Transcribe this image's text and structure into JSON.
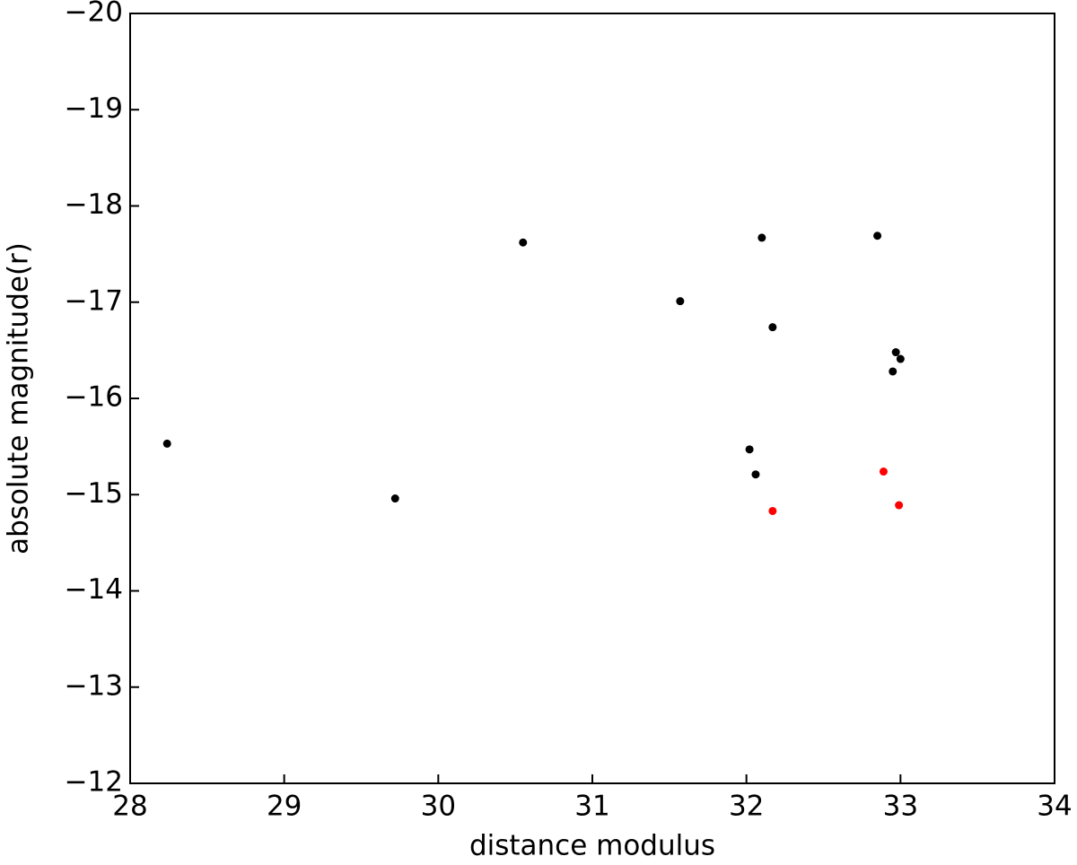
{
  "chart_data": {
    "type": "scatter",
    "xlabel": "distance modulus",
    "ylabel": "absolute magnitude(r)",
    "xlim": [
      28,
      34
    ],
    "ylim": [
      -12,
      -20
    ],
    "xticks": [
      28,
      29,
      30,
      31,
      32,
      33,
      34
    ],
    "yticks": [
      {
        "value": -20,
        "label": "−20"
      },
      {
        "value": -19,
        "label": "−19"
      },
      {
        "value": -18,
        "label": "−18"
      },
      {
        "value": -17,
        "label": "−17"
      },
      {
        "value": -16,
        "label": "−16"
      },
      {
        "value": -15,
        "label": "−15"
      },
      {
        "value": -14,
        "label": "−14"
      },
      {
        "value": -13,
        "label": "−13"
      },
      {
        "value": -12,
        "label": "−12"
      }
    ],
    "grid": false,
    "series": [
      {
        "color": "#000000",
        "x": [
          28.24,
          29.72,
          30.55,
          31.57,
          32.1,
          32.17,
          32.85,
          32.97,
          33.0,
          32.95,
          32.02,
          32.06
        ],
        "values": [
          -15.53,
          -14.96,
          -17.62,
          -17.01,
          -17.67,
          -16.74,
          -17.69,
          -16.48,
          -16.41,
          -16.28,
          -15.47,
          -15.21
        ]
      },
      {
        "color": "#ff0000",
        "x": [
          32.17,
          32.89,
          32.99
        ],
        "values": [
          -14.83,
          -15.24,
          -14.89
        ]
      }
    ]
  }
}
